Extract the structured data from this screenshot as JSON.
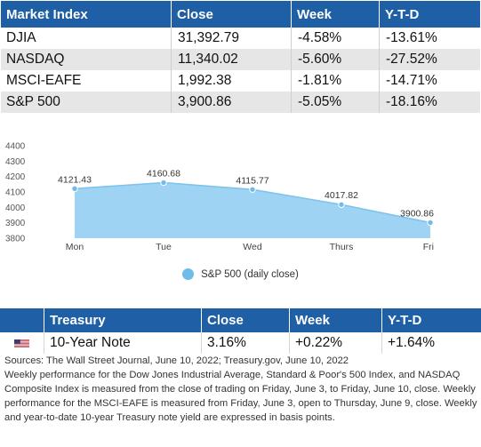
{
  "market_table": {
    "headers": [
      "Market Index",
      "Close",
      "Week",
      "Y-T-D"
    ],
    "rows": [
      [
        "DJIA",
        "31,392.79",
        "-4.58%",
        "-13.61%"
      ],
      [
        "NASDAQ",
        "11,340.02",
        "-5.60%",
        "-27.52%"
      ],
      [
        "MSCI-EAFE",
        "1,992.38",
        "-1.81%",
        "-14.71%"
      ],
      [
        "S&P 500",
        "3,900.86",
        "-5.05%",
        "-18.16%"
      ]
    ]
  },
  "chart_data": {
    "type": "area",
    "categories": [
      "Mon",
      "Tue",
      "Wed",
      "Thurs",
      "Fri"
    ],
    "series": [
      {
        "name": "S&P 500 (daily close)",
        "values": [
          4121.43,
          4160.68,
          4115.77,
          4017.82,
          3900.86
        ]
      }
    ],
    "data_labels": [
      "4121.43",
      "4160.68",
      "4115.77",
      "4017.82",
      "3900.86"
    ],
    "y_ticks": [
      "4400",
      "4300",
      "4200",
      "4100",
      "4000",
      "3900",
      "3800"
    ],
    "ylim": [
      3800,
      4400
    ],
    "legend_position": "bottom",
    "grid": false,
    "colors": {
      "fill": "#9fd3f3",
      "line": "#7cc2ec",
      "marker": "#6fbbe9"
    }
  },
  "treasury_table": {
    "headers": [
      "",
      "Treasury",
      "Close",
      "Week",
      "Y-T-D"
    ],
    "row": {
      "icon": "us-flag-icon",
      "name": "10-Year Note",
      "close": "3.16%",
      "week": "+0.22%",
      "ytd": "+1.64%"
    }
  },
  "notes": [
    "Sources: The Wall Street Journal, June 10, 2022; Treasury.gov, June 10, 2022",
    "Weekly performance for the Dow Jones Industrial Average, Standard & Poor's 500 Index, and NASDAQ Composite Index is measured from the close of trading on Friday, June 3, to Friday, June 10, close. Weekly performance for the MSCI-EAFE is measured from Friday, June 3, open to Thursday, June 9, close. Weekly and year-to-date 10-year Treasury note yield are expressed in basis points."
  ],
  "colors": {
    "header_bg": "#1f5fa6",
    "row_alt": "#e6e6e6"
  }
}
